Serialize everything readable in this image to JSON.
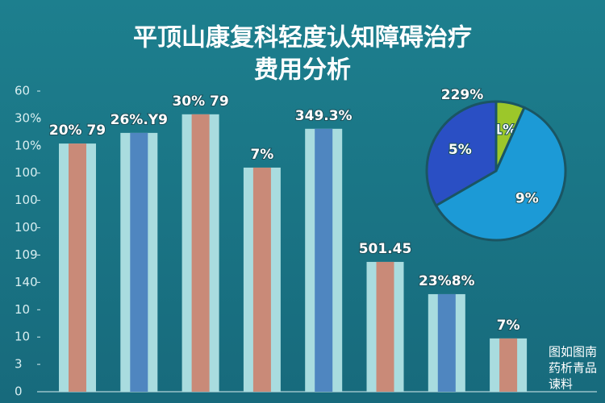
{
  "chart_data": [
    {
      "type": "bar",
      "title": [
        "平顶山康复科轻度认知障碍治疗",
        "费用分析"
      ],
      "categories": [
        null,
        null,
        null,
        null,
        null,
        null,
        null,
        null
      ],
      "values": [
        9.08,
        9.47,
        10.15,
        8.2,
        9.62,
        4.75,
        3.57,
        1.95
      ],
      "bar_labels": [
        "20% 79",
        "26%.Y9",
        "30% 79",
        "7%",
        "349.3%",
        "501.45",
        "23%8%",
        "7%"
      ],
      "colors": [
        "#c98a78",
        "#4f86c0",
        "#c98a78",
        "#c98a78",
        "#4f86c0",
        "#c98a78",
        "#4f86c0",
        "#c98a78"
      ],
      "edge_color": "#a9dcdf",
      "ylim": [
        0,
        11
      ],
      "yticks": [
        0,
        {
          "value": 1,
          "label": "3"
        },
        {
          "value": 2,
          "label": "10"
        },
        {
          "value": 3,
          "label": "10"
        },
        {
          "value": 4,
          "label": "140"
        },
        {
          "value": 5,
          "label": "109"
        },
        {
          "value": 6,
          "label": "100"
        },
        {
          "value": 7,
          "label": "100"
        },
        {
          "value": 8,
          "label": "100"
        },
        {
          "value": 9,
          "label": "10%"
        },
        {
          "value": 10,
          "label": "30%"
        },
        {
          "value": 11,
          "label": "60"
        }
      ],
      "grid": false
    },
    {
      "type": "pie",
      "title": "229%",
      "values": [
        1,
        9,
        5
      ],
      "value_labels": [
        "1%",
        "9%",
        "5%"
      ],
      "colors": [
        "#9cc72a",
        "#1c9ad6",
        "#2a4fc4"
      ]
    }
  ],
  "watermark": [
    "图如图南",
    "药析青品",
    "谏料"
  ]
}
